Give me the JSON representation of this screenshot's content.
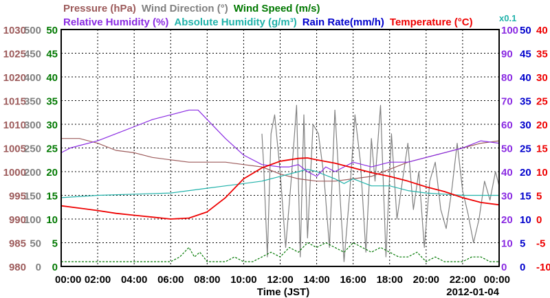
{
  "chart_data": {
    "type": "line",
    "date": "2012-01-04",
    "xlabel": "Time (JST)",
    "xlim": [
      0,
      24
    ],
    "x_ticks": [
      "00:00",
      "02:00",
      "04:00",
      "06:00",
      "08:00",
      "10:00",
      "12:00",
      "14:00",
      "16:00",
      "18:00",
      "20:00",
      "22:00",
      "00:00"
    ],
    "grid": true,
    "left_axes": [
      {
        "name": "pressure",
        "color": "#9c5a5a",
        "min": 980,
        "max": 1030,
        "ticks": [
          "980",
          "985",
          "990",
          "995",
          "1000",
          "1005",
          "1010",
          "1015",
          "1020",
          "1025",
          "1030"
        ]
      },
      {
        "name": "wind-direction",
        "color": "#808080",
        "min": 0,
        "max": 500,
        "ticks": [
          "0",
          "50",
          "100",
          "150",
          "200",
          "250",
          "300",
          "350",
          "400",
          "450",
          "500"
        ]
      },
      {
        "name": "wind-speed",
        "color": "#007800",
        "min": 0,
        "max": 50,
        "ticks": [
          "0",
          "5",
          "10",
          "15",
          "20",
          "25",
          "30",
          "35",
          "40",
          "45",
          "50"
        ]
      }
    ],
    "right_axes": [
      {
        "name": "relative-humidity",
        "color": "#8a2be2",
        "min": 0,
        "max": 100,
        "ticks": [
          "0",
          "10",
          "20",
          "30",
          "40",
          "50",
          "60",
          "70",
          "80",
          "90",
          "100"
        ]
      },
      {
        "name": "rain-rate",
        "color": "#0000cc",
        "min": 0,
        "max": 50,
        "ticks": [
          "0",
          "5",
          "10",
          "15",
          "20",
          "25",
          "30",
          "35",
          "40",
          "45",
          "50"
        ],
        "note": "x0.1"
      },
      {
        "name": "temperature",
        "color": "#ee0000",
        "min": -10,
        "max": 40,
        "ticks": [
          "-10",
          "-5",
          "0",
          "5",
          "10",
          "15",
          "20",
          "25",
          "30",
          "35",
          "40"
        ]
      }
    ],
    "legend": [
      {
        "label": "Pressure (hPa)",
        "color": "#9c5a5a",
        "row": 1
      },
      {
        "label": "Wind Direction (°)",
        "color": "#808080",
        "row": 1
      },
      {
        "label": "Wind Speed (m/s)",
        "color": "#007800",
        "row": 1
      },
      {
        "label": "Relative Humidity (%)",
        "color": "#8a2be2",
        "row": 2
      },
      {
        "label": "Absolute Humidity (g/m³)",
        "color": "#20b2aa",
        "row": 2
      },
      {
        "label": "Rain Rate(mm/h)",
        "color": "#0000cc",
        "row": 2
      },
      {
        "label": "Temperature (°C)",
        "color": "#ee0000",
        "row": 2
      }
    ],
    "series": [
      {
        "name": "Pressure (hPa)",
        "axis": "pressure",
        "color": "#9c5a5a",
        "x": [
          0,
          1,
          2,
          3,
          4,
          5,
          6,
          7,
          8,
          9,
          10,
          11,
          12,
          13,
          14,
          15,
          16,
          17,
          18,
          19,
          20,
          21,
          22,
          23,
          24
        ],
        "y": [
          1007,
          1007,
          1006,
          1004.5,
          1004,
          1003,
          1002.5,
          1002,
          1002,
          1002,
          1001.5,
          1001,
          999.5,
          998.5,
          998,
          998,
          998.5,
          999,
          1000.5,
          1002,
          1003,
          1004,
          1005,
          1006,
          1006.5
        ]
      },
      {
        "name": "Relative Humidity (%)",
        "axis": "relative-humidity",
        "color": "#8a2be2",
        "x": [
          0,
          0.5,
          1,
          2,
          3,
          4,
          5,
          6,
          7,
          7.5,
          8,
          9,
          10,
          11,
          12,
          12.5,
          13,
          13.5,
          14,
          14.5,
          15,
          15.5,
          16,
          17,
          18,
          19,
          20,
          21,
          22,
          23,
          24
        ],
        "y": [
          48,
          50,
          51,
          53,
          56,
          59,
          62,
          64,
          66,
          66,
          62,
          54,
          47,
          43,
          42,
          42,
          43,
          40,
          38,
          42,
          40,
          42,
          44,
          42,
          44,
          44,
          46,
          48,
          50,
          53,
          52
        ]
      },
      {
        "name": "Absolute Humidity (g/m³)",
        "axis": "relative-humidity",
        "color": "#20b2aa",
        "x": [
          0,
          2,
          4,
          6,
          7,
          8,
          9,
          10,
          11,
          12,
          13,
          13.5,
          14,
          15,
          15.5,
          16,
          17,
          18,
          19,
          20,
          21,
          22,
          23,
          24
        ],
        "y": [
          29,
          30,
          30.5,
          31,
          32,
          33,
          34,
          35,
          36,
          38,
          40,
          41,
          40,
          37,
          35,
          37,
          34,
          34,
          32,
          31,
          30.5,
          30,
          30,
          30
        ]
      },
      {
        "name": "Temperature (°C)",
        "axis": "temperature",
        "color": "#ee0000",
        "x": [
          0,
          1,
          2,
          3,
          4,
          5,
          6,
          7,
          8,
          9,
          10,
          11,
          12,
          13,
          13.5,
          14,
          15,
          16,
          17,
          18,
          19,
          20,
          21,
          22,
          23,
          24
        ],
        "y": [
          2.8,
          2.3,
          1.8,
          1.2,
          0.8,
          0.4,
          0.0,
          0.2,
          1.5,
          4.5,
          8.5,
          10.8,
          12.2,
          12.8,
          12.9,
          12.5,
          11.8,
          10.8,
          9.8,
          9.0,
          8.0,
          6.8,
          5.8,
          4.5,
          3.5,
          3.0
        ]
      },
      {
        "name": "Wind Direction (°)",
        "axis": "wind-direction",
        "color": "#808080",
        "x": [
          11.0,
          11.1,
          11.3,
          11.5,
          11.7,
          12.0,
          12.3,
          12.6,
          12.9,
          13.1,
          13.3,
          13.5,
          13.8,
          14.1,
          14.4,
          14.7,
          15.0,
          15.2,
          15.5,
          15.8,
          16.1,
          16.4,
          16.7,
          17.0,
          17.2,
          17.5,
          17.8,
          18.1,
          18.4,
          18.7,
          19.0,
          19.3,
          19.6,
          19.9,
          20.2,
          20.5,
          20.8,
          21.1,
          21.4,
          21.7,
          22.0,
          22.3,
          22.6,
          22.9,
          23.2,
          23.5,
          23.8,
          24.0
        ],
        "y": [
          280,
          210,
          20,
          280,
          320,
          200,
          40,
          180,
          340,
          20,
          320,
          60,
          300,
          280,
          190,
          40,
          330,
          200,
          10,
          150,
          320,
          220,
          30,
          270,
          180,
          340,
          20,
          280,
          100,
          180,
          260,
          120,
          200,
          40,
          180,
          220,
          120,
          80,
          160,
          260,
          160,
          110,
          50,
          100,
          180,
          140,
          200,
          170
        ]
      },
      {
        "name": "Wind Speed (m/s)",
        "axis": "wind-speed",
        "color": "#007800",
        "x": [
          0,
          1,
          2,
          3,
          4,
          5,
          6,
          6.5,
          7,
          7.3,
          7.6,
          8,
          8.5,
          9,
          9.5,
          10,
          10.5,
          11,
          11.5,
          12,
          12.5,
          13,
          13.5,
          14,
          14.5,
          15,
          15.5,
          16,
          16.5,
          17,
          17.5,
          18,
          18.5,
          19,
          19.5,
          20,
          20.5,
          21,
          21.5,
          22,
          22.5,
          23,
          23.5,
          24
        ],
        "y": [
          1,
          1,
          1,
          1,
          1,
          1,
          1,
          2,
          4,
          2,
          3,
          1,
          1,
          1,
          2,
          1,
          1,
          2,
          3,
          2,
          4,
          3,
          5,
          4,
          5,
          4,
          3,
          5,
          4,
          3,
          4,
          3,
          2,
          2,
          3,
          1,
          2,
          1,
          1,
          1,
          2,
          2,
          1,
          1
        ]
      }
    ]
  }
}
